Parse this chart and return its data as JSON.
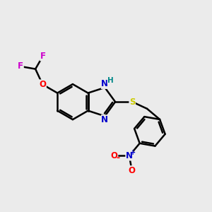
{
  "background_color": "#ebebeb",
  "bond_color": "#000000",
  "bond_width": 1.8,
  "atom_colors": {
    "N": "#0000cc",
    "O": "#ff0000",
    "S": "#cccc00",
    "F": "#cc00cc",
    "H": "#008888",
    "C": "#000000"
  },
  "font_size_atom": 8.5,
  "figsize": [
    3.0,
    3.0
  ],
  "dpi": 100
}
